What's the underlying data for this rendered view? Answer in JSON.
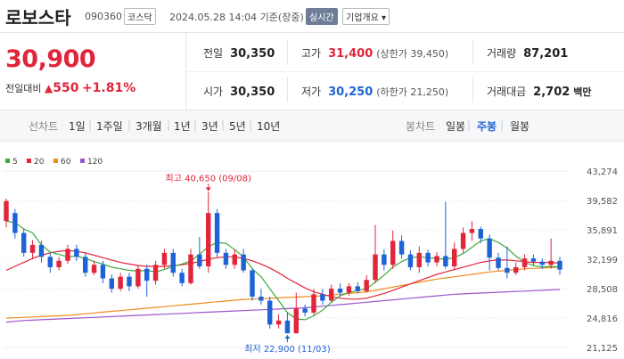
{
  "header": {
    "name": "로보스타",
    "code": "090360",
    "market": "코스닥",
    "datetime": "2024.05.28 14:04 기준(장중)",
    "realtime": "실시간",
    "corp_info": "기업개요"
  },
  "quote": {
    "price": "30,900",
    "change_label": "전일대비",
    "change": "550",
    "change_pct": "+1.81%",
    "prev_close_label": "전일",
    "prev_close": "30,350",
    "high_label": "고가",
    "high": "31,400",
    "upper_limit": "(상한가 39,450)",
    "volume_label": "거래량",
    "volume": "87,201",
    "open_label": "시가",
    "open": "30,350",
    "low_label": "저가",
    "low": "30,250",
    "lower_limit": "(하한가 21,250)",
    "amount_label": "거래대금",
    "amount": "2,702",
    "amount_unit": "백만"
  },
  "periods": {
    "line_label": "선차트",
    "line": [
      "1일",
      "1주일",
      "3개월",
      "1년",
      "3년",
      "5년",
      "10년"
    ],
    "candle_label": "봉차트",
    "candle": [
      "일봉",
      "주봉",
      "월봉"
    ],
    "candle_selected": "주봉"
  },
  "colors": {
    "up": "#e1253b",
    "down": "#1e63d6",
    "ma5": "#3dab3d",
    "ma20": "#e1253b",
    "ma60": "#f08c1c",
    "ma120": "#9a55c9"
  },
  "chart_data": {
    "type": "candlestick",
    "interval": "weekly",
    "legend": [
      "5",
      "20",
      "60",
      "120"
    ],
    "y_ticks": [
      "43,274",
      "39,582",
      "35,891",
      "32,199",
      "28,508",
      "24,816",
      "21,125"
    ],
    "ylim": [
      21125,
      43274
    ],
    "high_annotation": "최고 40,650 (09/08)",
    "low_annotation": "최저 22,900 (11/03)",
    "candles": [
      [
        37000,
        39500,
        39800,
        36200
      ],
      [
        38000,
        35500,
        38500,
        34800
      ],
      [
        35500,
        33000,
        36000,
        32500
      ],
      [
        33000,
        34000,
        34600,
        32200
      ],
      [
        34000,
        32500,
        34500,
        31800
      ],
      [
        32500,
        31200,
        33000,
        30500
      ],
      [
        31200,
        32000,
        32500,
        30800
      ],
      [
        32000,
        33500,
        34000,
        31600
      ],
      [
        33500,
        32500,
        34000,
        32000
      ],
      [
        32500,
        30500,
        33000,
        30000
      ],
      [
        30500,
        31500,
        32000,
        30200
      ],
      [
        31500,
        29800,
        32000,
        29200
      ],
      [
        29800,
        28500,
        30300,
        28000
      ],
      [
        28500,
        30000,
        30500,
        28200
      ],
      [
        30000,
        28800,
        30500,
        28200
      ],
      [
        28800,
        31000,
        31500,
        28500
      ],
      [
        31000,
        29500,
        31500,
        27500
      ],
      [
        29500,
        31500,
        32000,
        29000
      ],
      [
        31500,
        33000,
        33500,
        31000
      ],
      [
        33000,
        30500,
        33500,
        30000
      ],
      [
        30500,
        29200,
        31000,
        28800
      ],
      [
        29200,
        32800,
        33500,
        29000
      ],
      [
        32800,
        31300,
        35000,
        31000
      ],
      [
        31300,
        38000,
        40650,
        30500
      ],
      [
        38000,
        33000,
        38500,
        32500
      ],
      [
        33000,
        31500,
        33500,
        31000
      ],
      [
        31500,
        32800,
        33500,
        31000
      ],
      [
        32800,
        30800,
        33500,
        30500
      ],
      [
        30800,
        27500,
        31000,
        27000
      ],
      [
        27500,
        27000,
        28500,
        26500
      ],
      [
        27000,
        24000,
        27500,
        23500
      ],
      [
        24000,
        24500,
        25300,
        23500
      ],
      [
        24500,
        22900,
        25500,
        22900
      ],
      [
        22900,
        26000,
        28000,
        22900
      ],
      [
        26000,
        25500,
        26500,
        25000
      ],
      [
        25500,
        27800,
        28500,
        25200
      ],
      [
        27800,
        27000,
        28500,
        26500
      ],
      [
        27000,
        28500,
        29000,
        26800
      ],
      [
        28500,
        28000,
        29200,
        27500
      ],
      [
        28000,
        28800,
        29200,
        27600
      ],
      [
        28800,
        28200,
        29300,
        27900
      ],
      [
        28200,
        29600,
        30200,
        28000
      ],
      [
        29600,
        32800,
        36500,
        29200
      ],
      [
        32800,
        31500,
        33500,
        30800
      ],
      [
        31500,
        34500,
        35800,
        31000
      ],
      [
        34500,
        32800,
        35200,
        32300
      ],
      [
        32800,
        31200,
        33300,
        30800
      ],
      [
        31200,
        33000,
        33800,
        30500
      ],
      [
        33000,
        31800,
        33400,
        31300
      ],
      [
        31800,
        32600,
        33100,
        31300
      ],
      [
        32600,
        31300,
        39400,
        31000
      ],
      [
        31300,
        33500,
        34300,
        30800
      ],
      [
        33500,
        35500,
        36200,
        33000
      ],
      [
        35500,
        36000,
        37000,
        34500
      ],
      [
        36000,
        34800,
        36300,
        34200
      ],
      [
        34800,
        32400,
        35300,
        30800
      ],
      [
        32400,
        31100,
        33000,
        30800
      ],
      [
        31100,
        30500,
        33800,
        29800
      ],
      [
        30500,
        31200,
        31800,
        30200
      ],
      [
        31200,
        32300,
        32800,
        30800
      ],
      [
        32300,
        31900,
        32800,
        31400
      ],
      [
        31900,
        31500,
        32300,
        31000
      ],
      [
        31500,
        32000,
        34800,
        31000
      ],
      [
        32000,
        30900,
        32500,
        30250
      ]
    ],
    "ma5": [
      37000,
      36800,
      36000,
      35500,
      34000,
      33100,
      32800,
      32500,
      32600,
      32300,
      31900,
      31600,
      31200,
      31000,
      30800,
      30700,
      30800,
      30600,
      30900,
      31300,
      31600,
      32000,
      32800,
      33800,
      34300,
      34200,
      33400,
      32500,
      31000,
      30000,
      28500,
      27000,
      25500,
      24700,
      24600,
      25100,
      25800,
      26800,
      27600,
      28000,
      28300,
      28500,
      29300,
      30200,
      31200,
      31900,
      32400,
      32500,
      32400,
      32300,
      32200,
      32400,
      32900,
      33700,
      34500,
      34800,
      34300,
      33600,
      32600,
      31800,
      31400,
      31200,
      31300,
      31200
    ],
    "ma20": [
      30800,
      31300,
      31800,
      32300,
      32700,
      33000,
      33200,
      33300,
      33200,
      33000,
      32700,
      32400,
      32100,
      31800,
      31600,
      31400,
      31300,
      31300,
      31300,
      31400,
      31500,
      31700,
      31900,
      32200,
      32400,
      32500,
      32500,
      32300,
      32000,
      31600,
      31100,
      30500,
      29800,
      29200,
      28600,
      28100,
      27800,
      27500,
      27300,
      27200,
      27200,
      27300,
      27600,
      27900,
      28300,
      28700,
      29100,
      29500,
      29900,
      30300,
      30600,
      30900,
      31200,
      31500,
      31800,
      32000,
      32100,
      32100,
      32000,
      31900,
      31800,
      31800,
      31800,
      31700
    ],
    "ma60": [
      24800,
      24850,
      24900,
      24950,
      25000,
      25050,
      25100,
      25150,
      25250,
      25350,
      25450,
      25550,
      25650,
      25750,
      25850,
      25950,
      26050,
      26150,
      26250,
      26350,
      26450,
      26550,
      26650,
      26750,
      26850,
      26950,
      27050,
      27150,
      27200,
      27250,
      27300,
      27350,
      27400,
      27450,
      27500,
      27550,
      27600,
      27700,
      27800,
      27900,
      28000,
      28100,
      28300,
      28500,
      28700,
      28900,
      29100,
      29300,
      29500,
      29700,
      29850,
      30000,
      30150,
      30300,
      30450,
      30600,
      30700,
      30800,
      30900,
      31000,
      31050,
      31100,
      31150,
      31200
    ],
    "ma120": [
      24300,
      24400,
      24500,
      24550,
      24600,
      24650,
      24700,
      24750,
      24800,
      24850,
      24900,
      24950,
      25000,
      25050,
      25100,
      25150,
      25200,
      25250,
      25300,
      25350,
      25400,
      25450,
      25500,
      25550,
      25600,
      25650,
      25700,
      25750,
      25800,
      25850,
      25900,
      25950,
      26000,
      26050,
      26100,
      26200,
      26300,
      26400,
      26500,
      26600,
      26700,
      26800,
      26900,
      27000,
      27100,
      27200,
      27300,
      27400,
      27500,
      27600,
      27700,
      27800,
      27850,
      27900,
      27950,
      28000,
      28050,
      28100,
      28150,
      28200,
      28250,
      28300,
      28350,
      28400
    ]
  }
}
